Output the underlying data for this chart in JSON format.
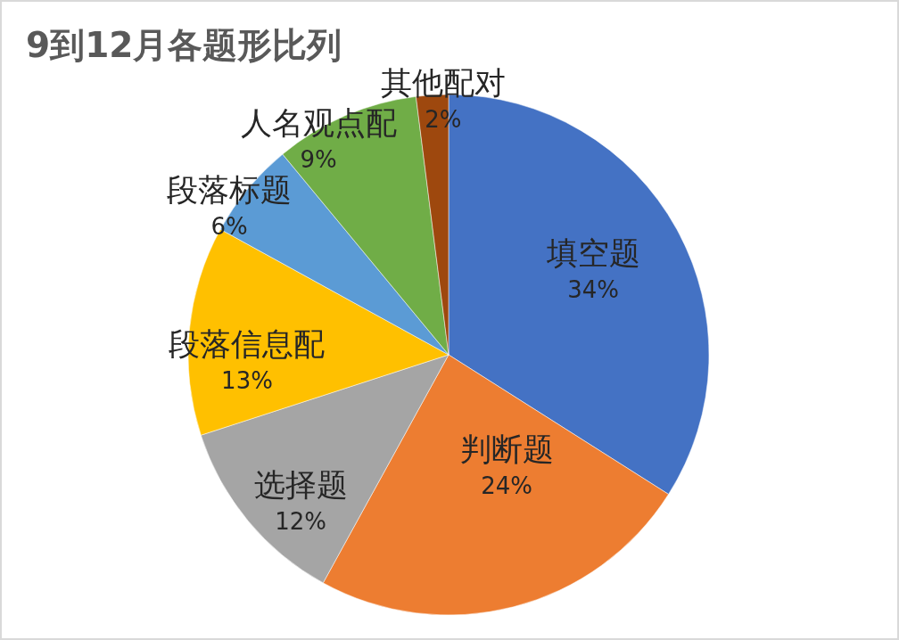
{
  "chart_data": {
    "type": "pie",
    "title": "9到12月各题形比列",
    "categories": [
      "填空题",
      "判断题",
      "选择题",
      "段落信息配",
      "段落标题",
      "人名观点配",
      "其他配对"
    ],
    "values": [
      34,
      24,
      12,
      13,
      6,
      9,
      2
    ],
    "colors": [
      "#4472c4",
      "#ed7d31",
      "#a5a5a5",
      "#ffc000",
      "#5b9bd5",
      "#70ad47",
      "#9e480e"
    ],
    "value_labels": [
      "34%",
      "24%",
      "12%",
      "13%",
      "6%",
      "9%",
      "2%"
    ]
  }
}
